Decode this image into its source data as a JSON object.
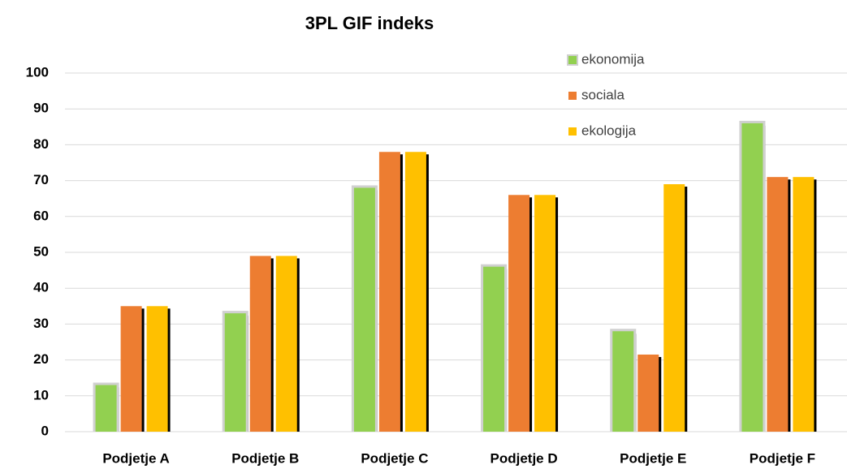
{
  "chart_data": {
    "type": "bar",
    "title": "3PL GIF indeks",
    "categories": [
      "Podjetje A",
      "Podjetje B",
      "Podjetje C",
      "Podjetje D",
      "Podjetje E",
      "Podjetje F"
    ],
    "series": [
      {
        "name": "ekonomija",
        "color": "#92d050",
        "values": [
          13,
          33,
          68,
          46,
          28,
          86
        ]
      },
      {
        "name": "sociala",
        "color": "#ed7d31",
        "values": [
          35,
          49,
          78,
          66,
          21.5,
          71
        ]
      },
      {
        "name": "ekologija",
        "color": "#ffc000",
        "values": [
          35,
          49,
          78,
          66,
          69,
          71
        ]
      }
    ],
    "ylim": [
      0,
      100
    ],
    "yticks": [
      0,
      10,
      20,
      30,
      40,
      50,
      60,
      70,
      80,
      90,
      100
    ],
    "grid": true
  }
}
